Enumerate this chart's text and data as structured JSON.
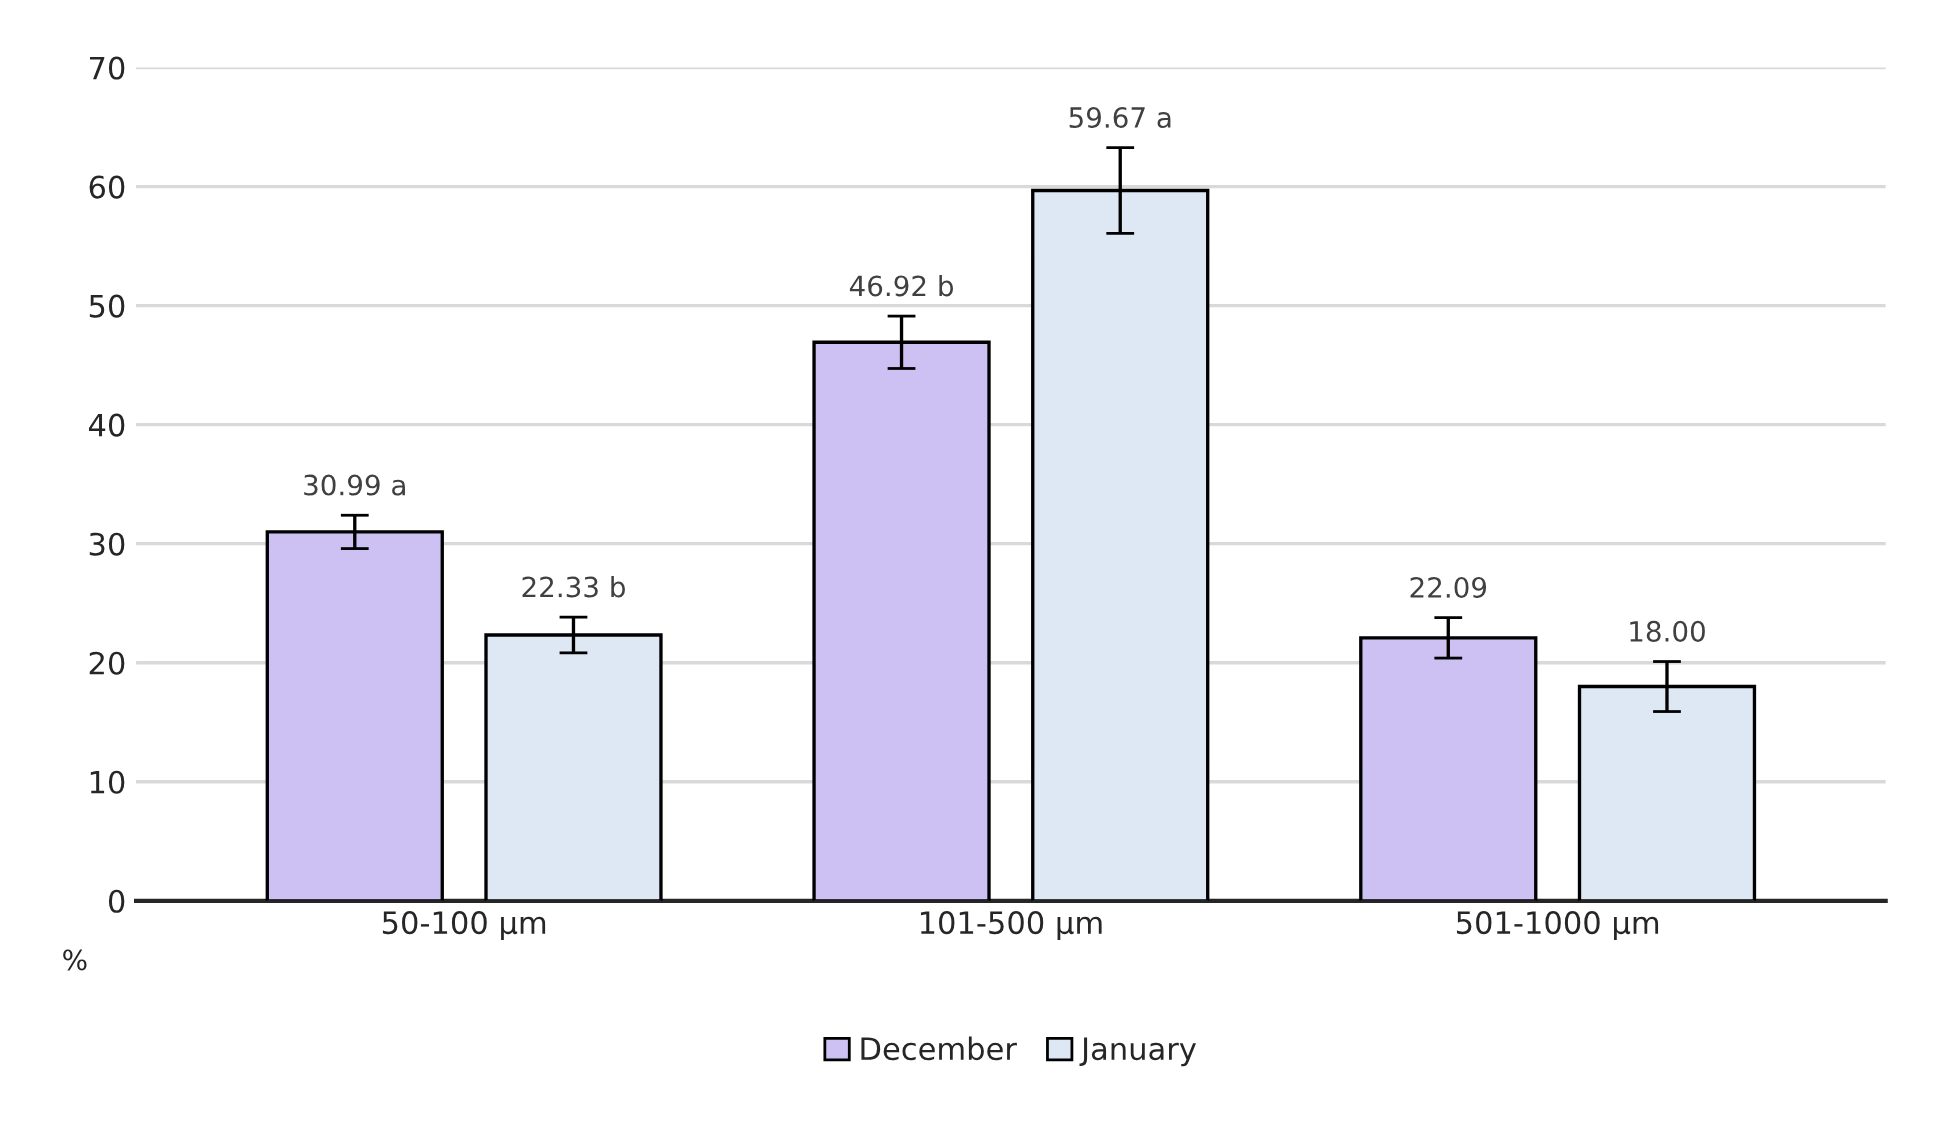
{
  "chart_data": {
    "type": "bar",
    "ylabel": "%",
    "categories": [
      "50-100 µm",
      "101-500 µm",
      "501-1000 µm"
    ],
    "series": [
      {
        "name": "December",
        "color": "#ccc1f2",
        "values": [
          30.99,
          46.92,
          22.09
        ],
        "errors": [
          1.4,
          2.2,
          1.7
        ],
        "value_labels": [
          "30.99 a",
          "46.92 b",
          "22.09"
        ]
      },
      {
        "name": "January",
        "color": "#dde8f4",
        "values": [
          22.33,
          59.67,
          18.0
        ],
        "errors": [
          1.5,
          3.6,
          2.1
        ],
        "value_labels": [
          "22.33 b",
          "59.67 a",
          "18.00"
        ]
      }
    ],
    "ylim": [
      0,
      70
    ],
    "yticks": [
      0,
      10,
      20,
      30,
      40,
      50,
      60,
      70
    ],
    "grid": "y",
    "legend": "bottom"
  }
}
